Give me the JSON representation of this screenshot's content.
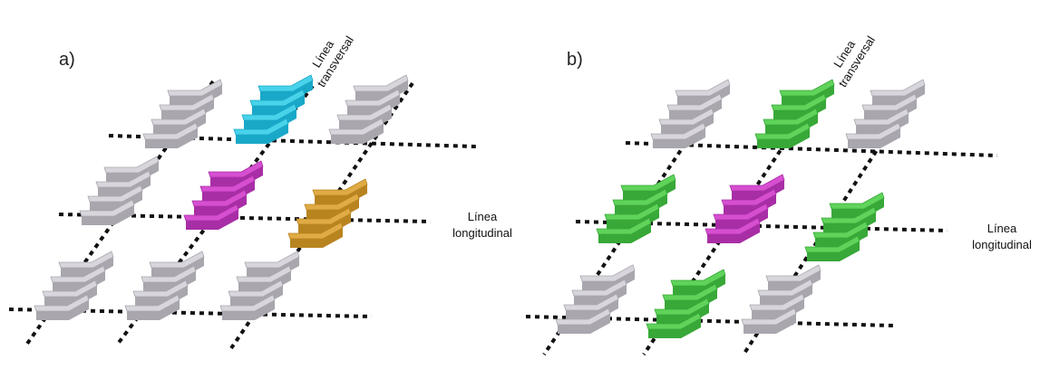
{
  "panels": [
    {
      "label": "a)",
      "transversal": [
        "Línea",
        "transversal"
      ],
      "longitudinal": [
        "Línea",
        "longitudinal"
      ]
    },
    {
      "label": "b)",
      "transversal": [
        "Línea",
        "transversal"
      ],
      "longitudinal": [
        "Línea",
        "longitudinal"
      ]
    }
  ]
}
